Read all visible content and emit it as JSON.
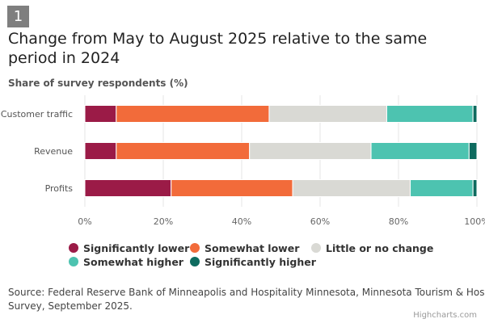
{
  "badge": "1",
  "title": "Change from May to August 2025 relative to the same period in 2024",
  "subtitle": "Share of survey respondents (%)",
  "source_line1": "Source: Federal Reserve Bank of Minneapolis and Hospitality Minnesota, Minnesota Tourism & Hospitality",
  "source_line2": "Survey, September 2025.",
  "credits": "Highcharts.com",
  "chart_data": {
    "type": "bar",
    "stacked": true,
    "orientation": "horizontal",
    "categories": [
      "Customer traffic",
      "Revenue",
      "Profits"
    ],
    "series": [
      {
        "name": "Significantly lower",
        "color": "#9b1b47",
        "values": [
          8,
          8,
          22
        ]
      },
      {
        "name": "Somewhat lower",
        "color": "#f26b3a",
        "values": [
          39,
          34,
          31
        ]
      },
      {
        "name": "Little or no change",
        "color": "#d9d9d4",
        "values": [
          30,
          31,
          30
        ]
      },
      {
        "name": "Somewhat higher",
        "color": "#4dc3b0",
        "values": [
          22,
          25,
          16
        ]
      },
      {
        "name": "Significantly higher",
        "color": "#0e6b5f",
        "values": [
          1,
          2,
          1
        ]
      }
    ],
    "xlim": [
      0,
      100
    ],
    "ticks": [
      "0%",
      "20%",
      "40%",
      "60%",
      "80%",
      "100%"
    ],
    "grid": true,
    "legend_position": "bottom"
  }
}
